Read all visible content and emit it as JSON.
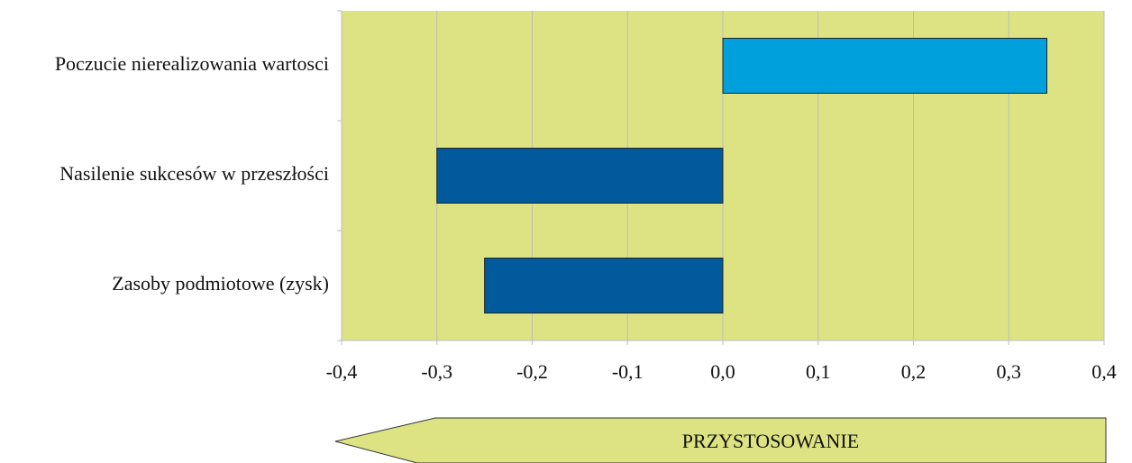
{
  "chart_data": {
    "type": "hbar",
    "categories": [
      "Poczucie nierealizowania wartosci",
      "Nasilenie sukcesów w przeszłości",
      "Zasoby podmiotowe (zysk)"
    ],
    "values": [
      0.34,
      -0.3,
      -0.25
    ],
    "colors": [
      "#00a0dc",
      "#005a9c",
      "#005a9c"
    ],
    "xlim": [
      -0.4,
      0.4
    ],
    "xticks": [
      {
        "value": -0.4,
        "label": "-0,4"
      },
      {
        "value": -0.3,
        "label": "-0,3"
      },
      {
        "value": -0.2,
        "label": "-0,2"
      },
      {
        "value": -0.1,
        "label": "-0,1"
      },
      {
        "value": 0,
        "label": "0,0"
      },
      {
        "value": 0.1,
        "label": "0,1"
      },
      {
        "value": 0.2,
        "label": "0,2"
      },
      {
        "value": 0.3,
        "label": "0,3"
      },
      {
        "value": 0.4,
        "label": "0,4"
      }
    ],
    "grid": true,
    "annotation": "PRZYSTOSOWANIE"
  }
}
